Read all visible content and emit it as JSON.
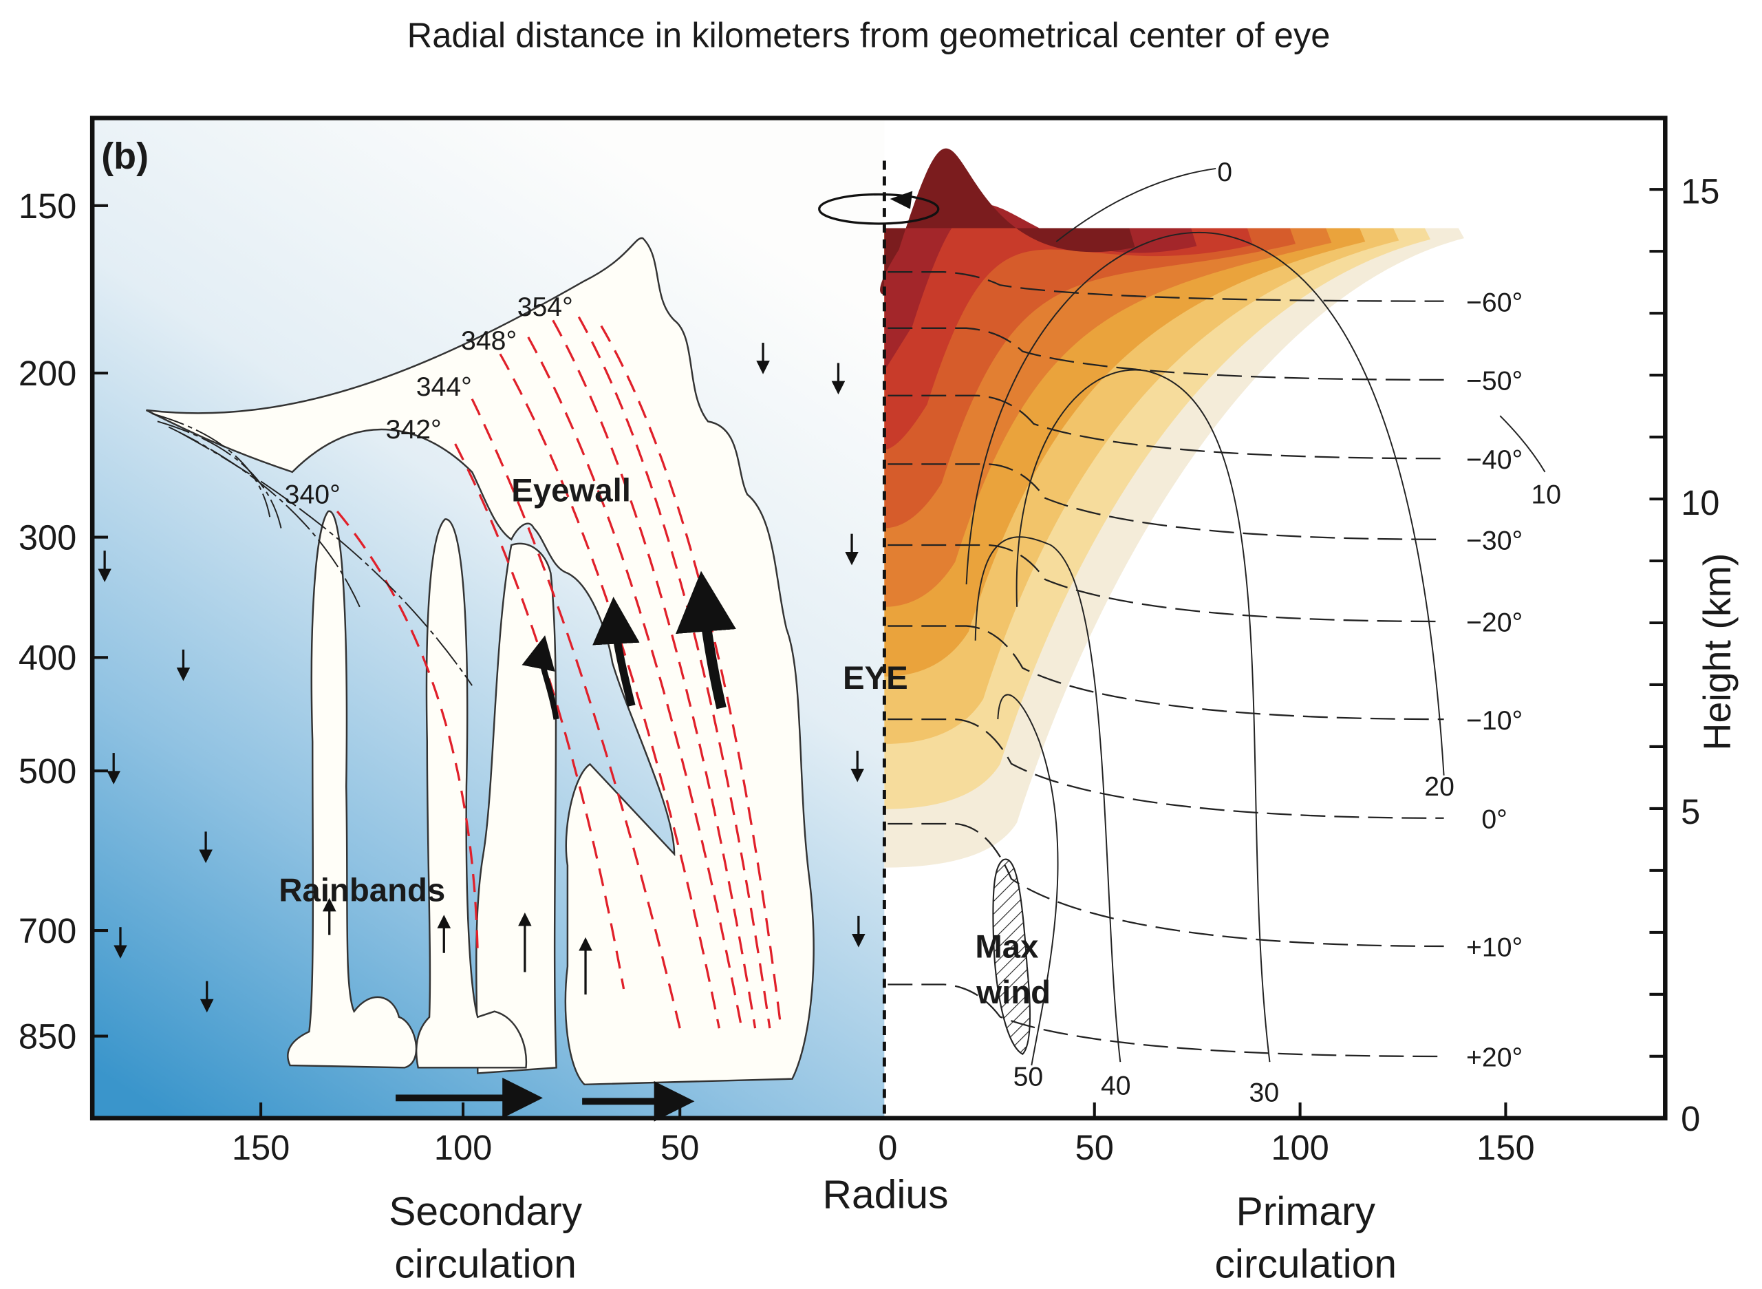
{
  "title": "Radial distance in kilometers from geometrical center of eye",
  "panel_label": "(b)",
  "pressure_axis": {
    "labels": [
      "150",
      "200",
      "300",
      "400",
      "500",
      "700",
      "850"
    ]
  },
  "height_axis": {
    "title": "Height (km)",
    "labels": [
      "15",
      "10",
      "5",
      "0"
    ]
  },
  "radius_axis": {
    "title": "Radius",
    "left_labels": [
      "150",
      "100",
      "50"
    ],
    "center_label": "0",
    "right_labels": [
      "50",
      "100",
      "150"
    ]
  },
  "bottom_labels": {
    "left": [
      "Secondary",
      "circulation"
    ],
    "right": [
      "Primary",
      "circulation"
    ]
  },
  "isentropes": [
    "340°",
    "342°",
    "344°",
    "348°",
    "354°"
  ],
  "region_labels": {
    "eyewall": "Eyewall",
    "rainbands": "Rainbands",
    "eye": "EYE",
    "max_wind": [
      "Max",
      "wind"
    ]
  },
  "temperature_labels": [
    "−60°",
    "−50°",
    "−40°",
    "−30°",
    "−20°",
    "−10°",
    "0°",
    "+10°",
    "+20°"
  ],
  "wind_labels": [
    "0",
    "10",
    "20",
    "50",
    "40",
    "30"
  ]
}
